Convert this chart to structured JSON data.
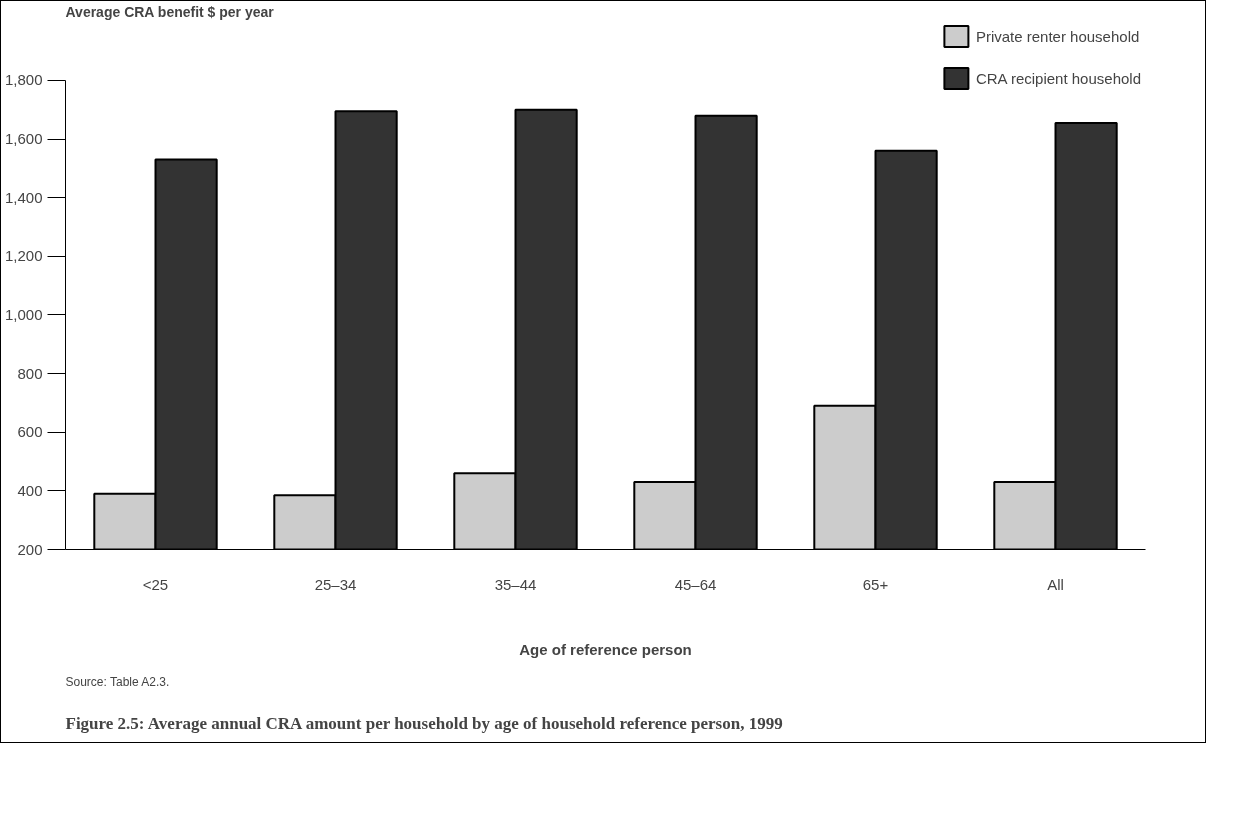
{
  "chart_data": {
    "type": "bar",
    "title": "Figure 2.5: Average annual CRA amount per household by age of household reference person, 1999",
    "xlabel": "Age of reference person",
    "ylabel": "Average CRA benefit $ per year",
    "annotations": [
      "Source: Table A2.3."
    ],
    "categories": [
      "<25",
      "25–34",
      "35–44",
      "45–64",
      "65+",
      "All"
    ],
    "series": [
      {
        "name": "Private renter household",
        "color": "#cccccc",
        "values": [
          390,
          385,
          460,
          430,
          690,
          430
        ]
      },
      {
        "name": "CRA recipient household",
        "color": "#333333",
        "values": [
          1530,
          1695,
          1700,
          1680,
          1560,
          1655
        ]
      }
    ],
    "ylim": [
      200,
      1800
    ],
    "yticks": [
      {
        "value": 200,
        "label": "200"
      },
      {
        "value": 400,
        "label": "400"
      },
      {
        "value": 600,
        "label": "600"
      },
      {
        "value": 800,
        "label": "800"
      },
      {
        "value": 1000,
        "label": "1,000"
      },
      {
        "value": 1200,
        "label": "1,200"
      },
      {
        "value": 1400,
        "label": "1,400"
      },
      {
        "value": 1600,
        "label": "1,600"
      },
      {
        "value": 1800,
        "label": "1,800"
      }
    ],
    "grid": false,
    "legend": "top right"
  }
}
